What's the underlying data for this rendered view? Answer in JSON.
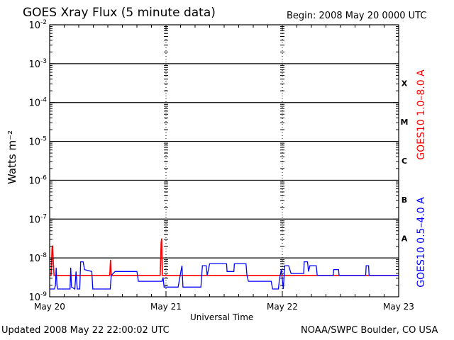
{
  "header": {
    "title": "GOES Xray Flux (5 minute data)",
    "begin": "Begin:  2008 May 20 0000 UTC"
  },
  "footer": {
    "updated": "Updated 2008 May 22 22:00:02 UTC",
    "credit": "NOAA/SWPC Boulder, CO USA"
  },
  "chart_data": {
    "type": "line",
    "title": "GOES Xray Flux (5 minute data)",
    "xlabel": "Universal Time",
    "ylabel": "Watts m⁻²",
    "y_scale": "log",
    "ylim": [
      1e-09,
      0.01
    ],
    "xlim": [
      0,
      72
    ],
    "x_unit": "hours since 2008 May 20 00:00 UTC",
    "x_ticks": [
      {
        "x": 0,
        "label": "May 20"
      },
      {
        "x": 24,
        "label": "May 21"
      },
      {
        "x": 48,
        "label": "May 22"
      },
      {
        "x": 72,
        "label": "May 23"
      }
    ],
    "y_ticks": [
      {
        "exp": -9,
        "label": "10",
        "sup": "-9"
      },
      {
        "exp": -8,
        "label": "10",
        "sup": "-8"
      },
      {
        "exp": -7,
        "label": "10",
        "sup": "-7"
      },
      {
        "exp": -6,
        "label": "10",
        "sup": "-6"
      },
      {
        "exp": -5,
        "label": "10",
        "sup": "-5"
      },
      {
        "exp": -4,
        "label": "10",
        "sup": "-4"
      },
      {
        "exp": -3,
        "label": "10",
        "sup": "-3"
      },
      {
        "exp": -2,
        "label": "10",
        "sup": "-2"
      }
    ],
    "flare_classes": [
      {
        "label": "A",
        "exp": -7.5
      },
      {
        "label": "B",
        "exp": -6.5
      },
      {
        "label": "C",
        "exp": -5.5
      },
      {
        "label": "M",
        "exp": -4.5
      },
      {
        "label": "X",
        "exp": -3.5
      }
    ],
    "horizontal_lines_exp": [
      -8,
      -7,
      -6,
      -5,
      -4,
      -3
    ],
    "grid": true,
    "legend_placement": "right, vertical",
    "series": [
      {
        "name": "GOES10 1.0–8.0 A",
        "color": "#ff0000",
        "points": [
          [
            0.0,
            -8.45
          ],
          [
            0.3,
            -8.45
          ],
          [
            0.5,
            -7.75
          ],
          [
            0.6,
            -7.68
          ],
          [
            0.75,
            -8.1
          ],
          [
            0.9,
            -8.45
          ],
          [
            12.4,
            -8.45
          ],
          [
            12.55,
            -8.05
          ],
          [
            12.7,
            -8.45
          ],
          [
            22.8,
            -8.45
          ],
          [
            23.0,
            -7.6
          ],
          [
            23.1,
            -7.5
          ],
          [
            23.25,
            -8.45
          ],
          [
            72.0,
            -8.45
          ]
        ]
      },
      {
        "name": "GOES10 0.5–4.0 A",
        "color": "#0000ff",
        "points": [
          [
            0.0,
            -8.8
          ],
          [
            1.0,
            -8.8
          ],
          [
            1.2,
            -8.7
          ],
          [
            1.35,
            -8.25
          ],
          [
            1.5,
            -8.7
          ],
          [
            1.65,
            -8.8
          ],
          [
            4.2,
            -8.8
          ],
          [
            4.35,
            -8.25
          ],
          [
            4.5,
            -8.75
          ],
          [
            5.2,
            -8.8
          ],
          [
            5.45,
            -8.35
          ],
          [
            5.7,
            -8.8
          ],
          [
            6.2,
            -8.8
          ],
          [
            6.4,
            -8.1
          ],
          [
            6.9,
            -8.1
          ],
          [
            7.2,
            -8.3
          ],
          [
            8.7,
            -8.35
          ],
          [
            8.9,
            -8.8
          ],
          [
            12.5,
            -8.8
          ],
          [
            12.7,
            -8.45
          ],
          [
            13.5,
            -8.35
          ],
          [
            18.0,
            -8.35
          ],
          [
            18.3,
            -8.6
          ],
          [
            23.2,
            -8.6
          ],
          [
            23.4,
            -8.5
          ],
          [
            23.6,
            -8.75
          ],
          [
            26.5,
            -8.75
          ],
          [
            27.0,
            -8.4
          ],
          [
            27.3,
            -8.2
          ],
          [
            27.5,
            -8.75
          ],
          [
            31.2,
            -8.75
          ],
          [
            31.5,
            -8.2
          ],
          [
            32.3,
            -8.2
          ],
          [
            32.5,
            -8.45
          ],
          [
            33.0,
            -8.15
          ],
          [
            36.5,
            -8.15
          ],
          [
            36.6,
            -8.35
          ],
          [
            38.0,
            -8.35
          ],
          [
            38.1,
            -8.15
          ],
          [
            40.5,
            -8.15
          ],
          [
            40.7,
            -8.45
          ],
          [
            41.0,
            -8.6
          ],
          [
            45.7,
            -8.6
          ],
          [
            46.0,
            -8.8
          ],
          [
            47.2,
            -8.8
          ],
          [
            47.4,
            -8.55
          ],
          [
            47.8,
            -8.3
          ],
          [
            48.2,
            -8.8
          ],
          [
            48.5,
            -8.2
          ],
          [
            49.3,
            -8.2
          ],
          [
            49.8,
            -8.4
          ],
          [
            52.4,
            -8.4
          ],
          [
            52.5,
            -8.1
          ],
          [
            53.2,
            -8.1
          ],
          [
            53.4,
            -8.35
          ],
          [
            53.7,
            -8.2
          ],
          [
            55.0,
            -8.2
          ],
          [
            55.2,
            -8.45
          ],
          [
            58.5,
            -8.45
          ],
          [
            58.6,
            -8.3
          ],
          [
            59.6,
            -8.3
          ],
          [
            59.7,
            -8.45
          ],
          [
            65.2,
            -8.45
          ],
          [
            65.3,
            -8.2
          ],
          [
            65.8,
            -8.2
          ],
          [
            65.9,
            -8.45
          ],
          [
            72.0,
            -8.45
          ]
        ]
      }
    ]
  }
}
